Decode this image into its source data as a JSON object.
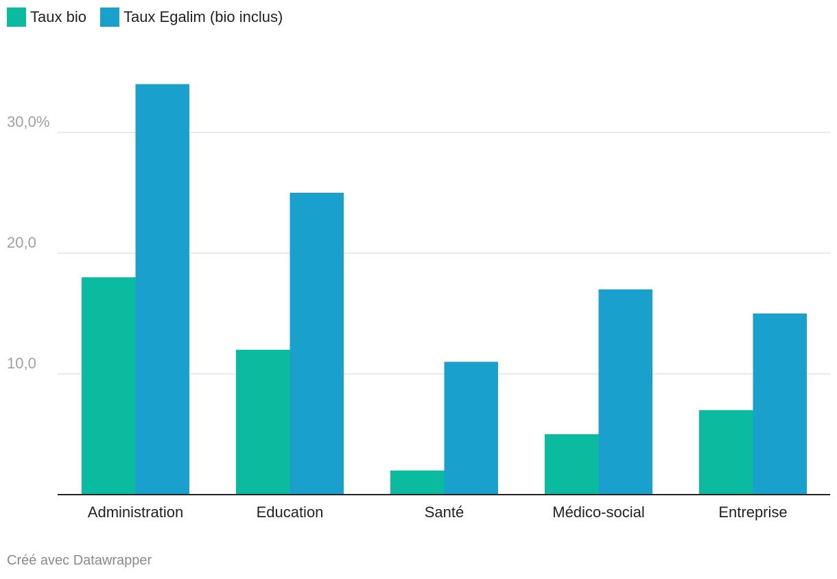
{
  "colors": {
    "bio": "#0bbb9f",
    "egalim": "#1aa0cc",
    "grid": "#e2e2e2",
    "axis": "#222222",
    "tick": "#a0a0a0"
  },
  "legend": [
    {
      "label": "Taux bio",
      "color": "#0bbb9f"
    },
    {
      "label": "Taux Egalim (bio inclus)",
      "color": "#1aa0cc"
    }
  ],
  "credit": "Créé avec Datawrapper",
  "chart_data": {
    "type": "bar",
    "categories": [
      "Administration",
      "Education",
      "Santé",
      "Médico-social",
      "Entreprise"
    ],
    "series": [
      {
        "name": "Taux bio",
        "values": [
          18,
          12,
          2,
          5,
          7
        ]
      },
      {
        "name": "Taux Egalim (bio inclus)",
        "values": [
          34,
          25,
          11,
          17,
          15
        ]
      }
    ],
    "yticks": [
      {
        "value": 10,
        "label": "10,0"
      },
      {
        "value": 20,
        "label": "20,0"
      },
      {
        "value": 30,
        "label": "30,0%"
      }
    ],
    "ylim": [
      0,
      34
    ],
    "grid": true,
    "legend_position": "top-left"
  }
}
